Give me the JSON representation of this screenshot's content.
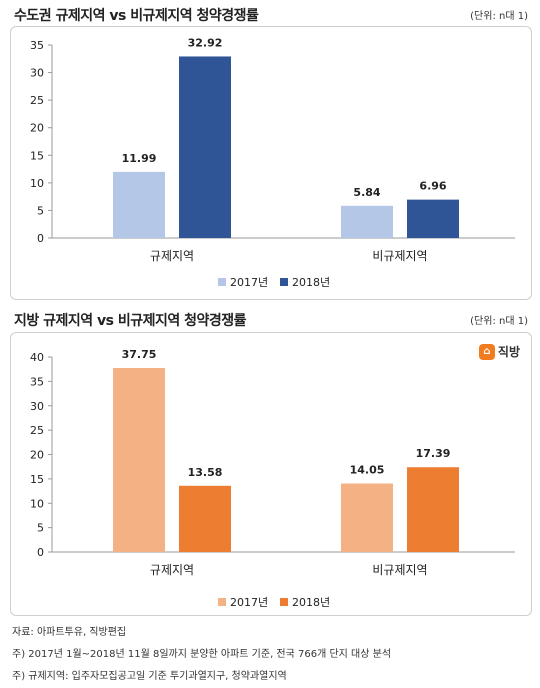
{
  "charts_meta": [
    {
      "title": "수도권 규제지역 vs 비규제지역 청약경쟁률",
      "unit": "(단위: n대 1)"
    },
    {
      "title": "지방 규제지역 vs 비규제지역 청약경쟁률",
      "unit": "(단위: n대 1)",
      "brand": "직방"
    }
  ],
  "colors": {
    "top_2017": "#b4c7e7",
    "top_2018": "#2f5597",
    "bottom_2017": "#f4b183",
    "bottom_2018": "#ed7d31"
  },
  "chart_data": [
    {
      "type": "bar",
      "title": "수도권 규제지역 vs 비규제지역 청약경쟁률",
      "categories": [
        "규제지역",
        "비규제지역"
      ],
      "series": [
        {
          "name": "2017년",
          "values": [
            11.99,
            5.84
          ]
        },
        {
          "name": "2018년",
          "values": [
            32.92,
            6.96
          ]
        }
      ],
      "ylim": [
        0,
        35
      ],
      "yticks": [
        0,
        5,
        10,
        15,
        20,
        25,
        30,
        35
      ],
      "legend": "bottom",
      "grid": false
    },
    {
      "type": "bar",
      "title": "지방 규제지역 vs 비규제지역 청약경쟁률",
      "categories": [
        "규제지역",
        "비규제지역"
      ],
      "series": [
        {
          "name": "2017년",
          "values": [
            37.75,
            14.05
          ]
        },
        {
          "name": "2018년",
          "values": [
            13.58,
            17.39
          ]
        }
      ],
      "ylim": [
        0,
        40
      ],
      "yticks": [
        0,
        5,
        10,
        15,
        20,
        25,
        30,
        35,
        40
      ],
      "legend": "bottom",
      "grid": false
    }
  ],
  "notes": [
    "자료: 아파트투유, 직방편집",
    "주) 2017년 1월~2018년 11월 8일까지 분양한 아파트 기준, 전국 766개 단지 대상 분석",
    "주) 규제지역: 입주자모집공고일 기준 투기과열지구, 청약과열지역"
  ]
}
